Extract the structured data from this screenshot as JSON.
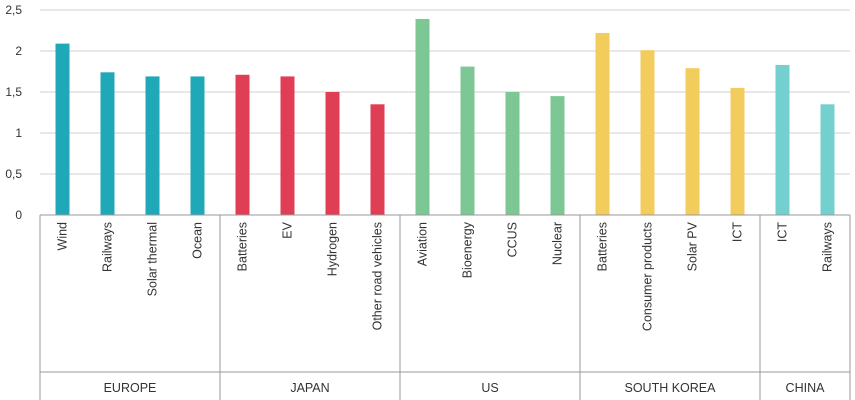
{
  "chart_data": {
    "type": "bar",
    "ylim": [
      0,
      2.5
    ],
    "yticks": [
      "0",
      "0,5",
      "1",
      "1,5",
      "2",
      "2,5"
    ],
    "grid": true,
    "groups": [
      {
        "label": "EUROPE",
        "color": "#1fa8b8",
        "categories": [
          "Wind",
          "Railways",
          "Solar thermal",
          "Ocean"
        ],
        "values": [
          2.09,
          1.74,
          1.69,
          1.69
        ]
      },
      {
        "label": "JAPAN",
        "color": "#e03e55",
        "categories": [
          "Batteries",
          "EV",
          "Hydrogen",
          "Other road vehicles"
        ],
        "values": [
          1.71,
          1.69,
          1.5,
          1.35
        ]
      },
      {
        "label": "US",
        "color": "#7dc795",
        "categories": [
          "Aviation",
          "Bioenergy",
          "CCUS",
          "Nuclear"
        ],
        "values": [
          2.39,
          1.81,
          1.5,
          1.45
        ]
      },
      {
        "label": "SOUTH KOREA",
        "color": "#f2cc5c",
        "categories": [
          "Batteries",
          "Consumer products",
          "Solar PV",
          "ICT"
        ],
        "values": [
          2.22,
          2.01,
          1.79,
          1.55
        ]
      },
      {
        "label": "CHINA",
        "color": "#74cfcf",
        "categories": [
          "ICT",
          "Railways"
        ],
        "values": [
          1.83,
          1.35
        ]
      }
    ]
  }
}
